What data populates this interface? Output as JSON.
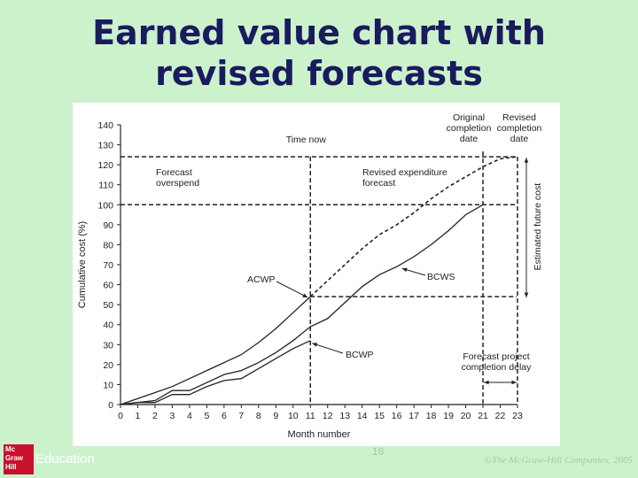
{
  "slide": {
    "title_line1": "Earned value chart with",
    "title_line2": "revised forecasts",
    "page_number": "16",
    "copyright": "©The McGraw-Hill Companies, 2005",
    "logo_lines": [
      "Mc",
      "Graw",
      "Hill"
    ],
    "logo_suffix": "Education"
  },
  "colors": {
    "background": "#ccf2cc",
    "title": "#1a1a5e",
    "logo": "#c8102e"
  },
  "chart_data": {
    "type": "line",
    "title": "",
    "xlabel": "Month number",
    "ylabel": "Cumulative cost (%)",
    "xlim": [
      0,
      23
    ],
    "ylim": [
      0,
      140
    ],
    "xticks": [
      0,
      1,
      2,
      3,
      4,
      5,
      6,
      7,
      8,
      9,
      10,
      11,
      12,
      13,
      14,
      15,
      16,
      17,
      18,
      19,
      20,
      21,
      22,
      23
    ],
    "yticks": [
      0,
      10,
      20,
      30,
      40,
      50,
      60,
      70,
      80,
      90,
      100,
      110,
      120,
      130,
      140
    ],
    "grid": false,
    "series": [
      {
        "name": "BCWS",
        "style": "solid",
        "x": [
          0,
          1,
          2,
          3,
          4,
          5,
          6,
          7,
          8,
          9,
          10,
          11,
          12,
          13,
          14,
          15,
          16,
          17,
          18,
          19,
          20,
          21
        ],
        "y": [
          0,
          1,
          2,
          7,
          7,
          11,
          15,
          17,
          21,
          26,
          32,
          39,
          43,
          51,
          59,
          65,
          69,
          74,
          80,
          87,
          95,
          100
        ]
      },
      {
        "name": "ACWP",
        "style": "solid",
        "x": [
          0,
          1,
          2,
          3,
          4,
          5,
          6,
          7,
          8,
          9,
          10,
          11
        ],
        "y": [
          0,
          3,
          6,
          9,
          13,
          17,
          21,
          25,
          31,
          38,
          46,
          54
        ]
      },
      {
        "name": "BCWP",
        "style": "solid",
        "x": [
          0,
          1,
          2,
          3,
          4,
          5,
          6,
          7,
          8,
          9,
          10,
          11
        ],
        "y": [
          0,
          1,
          1,
          5,
          5,
          9,
          12,
          13,
          18,
          23,
          28,
          32
        ]
      },
      {
        "name": "Revised expenditure forecast",
        "style": "dashed",
        "x": [
          11,
          12,
          13,
          14,
          15,
          16,
          17,
          18,
          19,
          20,
          21,
          22,
          23
        ],
        "y": [
          54,
          62,
          70,
          78,
          85,
          90,
          96,
          103,
          109,
          114,
          119,
          123,
          124
        ]
      }
    ],
    "reference_lines": {
      "time_now_x": 11,
      "original_completion_x": 21,
      "revised_completion_x": 23,
      "budget_y": 100,
      "forecast_y": 124,
      "forecast_overspend_y": 54
    },
    "annotations": {
      "time_now": "Time now",
      "original_completion": [
        "Original",
        "completion",
        "date"
      ],
      "revised_completion": [
        "Revised",
        "completion",
        "date"
      ],
      "forecast_overspend": [
        "Forecast",
        "overspend"
      ],
      "revised_expenditure": [
        "Revised expenditure",
        "forecast"
      ],
      "estimated_future_cost": "Estimated future cost",
      "acwp": "ACWP",
      "bcws": "BCWS",
      "bcwp": "BCWP",
      "completion_delay": [
        "Forecast project",
        "completion delay"
      ]
    }
  }
}
